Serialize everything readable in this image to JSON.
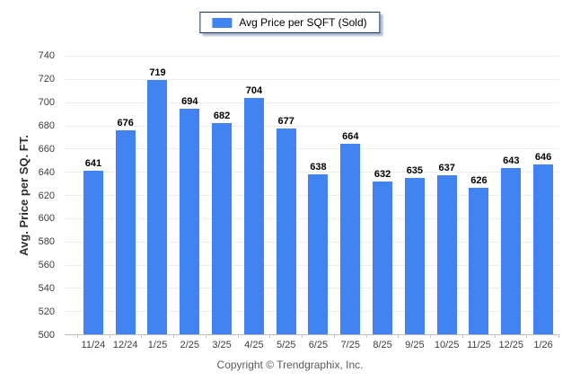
{
  "legend": {
    "swatch_color": "#4183f1"
  },
  "chart_data": {
    "type": "bar",
    "series_name": "Avg Price per SQFT (Sold)",
    "ylabel": "Avg. Price per SQ. FT.",
    "xlabel": "",
    "categories": [
      "11/24",
      "12/24",
      "1/25",
      "2/25",
      "3/25",
      "4/25",
      "5/25",
      "6/25",
      "7/25",
      "8/25",
      "9/25",
      "10/25",
      "11/25",
      "12/25",
      "1/26"
    ],
    "values": [
      641,
      676,
      719,
      694,
      682,
      704,
      677,
      638,
      664,
      632,
      635,
      637,
      626,
      643,
      646
    ],
    "ylim": [
      500,
      740
    ],
    "ytick_step": 20,
    "grid": true,
    "legend_position": "top-center",
    "bar_color": "#4183f1",
    "value_labels": true
  },
  "footer": {
    "text": "Copyright © Trendgraphix, Inc."
  }
}
